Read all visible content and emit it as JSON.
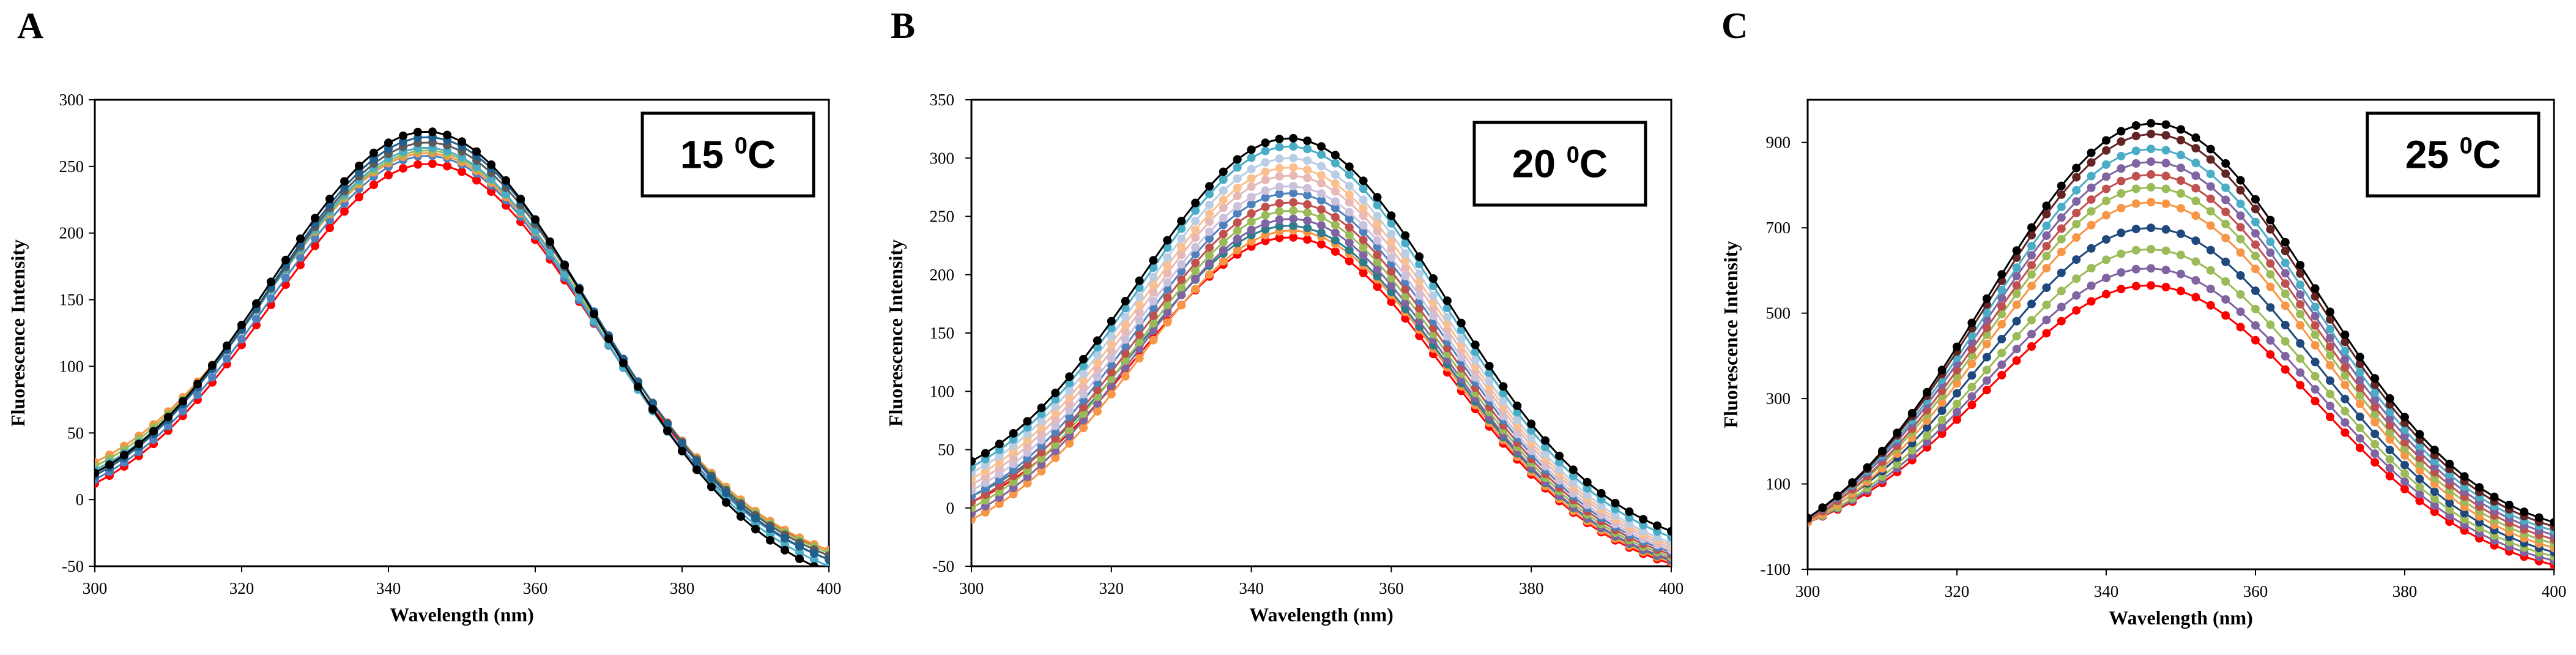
{
  "chart_data": [
    {
      "type": "line",
      "panel": "A",
      "annotation": {
        "temp": "15",
        "sup": "0",
        "unit": "C"
      },
      "xlabel": "Wavelength (nm)",
      "ylabel": "Fluorescence Intensity",
      "xlim": [
        300,
        400
      ],
      "ylim": [
        -50,
        300
      ],
      "xticks": [
        300,
        320,
        340,
        360,
        380,
        400
      ],
      "yticks": [
        -50,
        0,
        50,
        100,
        150,
        200,
        250,
        300
      ],
      "peak_x": 346,
      "series_params": [
        {
          "name": "s1",
          "color": "#000000",
          "peak": 276,
          "start": 20,
          "end": -55
        },
        {
          "name": "s2",
          "color": "#1f5f8b",
          "peak": 272,
          "start": 18,
          "end": -45
        },
        {
          "name": "s3",
          "color": "#5a5a5a",
          "peak": 268,
          "start": 20,
          "end": -42
        },
        {
          "name": "s4",
          "color": "#4bacc6",
          "peak": 264,
          "start": 22,
          "end": -50
        },
        {
          "name": "s5",
          "color": "#9bbb59",
          "peak": 262,
          "start": 25,
          "end": -40
        },
        {
          "name": "s6",
          "color": "#f79646",
          "peak": 260,
          "start": 28,
          "end": -38
        },
        {
          "name": "s7",
          "color": "#4f81bd",
          "peak": 258,
          "start": 15,
          "end": -45
        },
        {
          "name": "s8",
          "color": "#ff0000",
          "peak": 252,
          "start": 12,
          "end": -38
        }
      ]
    },
    {
      "type": "line",
      "panel": "B",
      "annotation": {
        "temp": "20",
        "sup": "0",
        "unit": "C"
      },
      "xlabel": "Wavelength (nm)",
      "ylabel": "Fluorescence Intensity",
      "xlim": [
        300,
        400
      ],
      "ylim": [
        -50,
        350
      ],
      "xticks": [
        300,
        320,
        340,
        360,
        380,
        400
      ],
      "yticks": [
        -50,
        0,
        50,
        100,
        150,
        200,
        250,
        300,
        350
      ],
      "peak_x": 346,
      "series_params": [
        {
          "name": "s1",
          "color": "#000000",
          "peak": 317,
          "start": 40,
          "end": -20
        },
        {
          "name": "s2",
          "color": "#4bacc6",
          "peak": 310,
          "start": 35,
          "end": -25
        },
        {
          "name": "s3",
          "color": "#b9cde5",
          "peak": 300,
          "start": 30,
          "end": -30
        },
        {
          "name": "s4",
          "color": "#fac090",
          "peak": 292,
          "start": 25,
          "end": -32
        },
        {
          "name": "s5",
          "color": "#e6b9b8",
          "peak": 285,
          "start": 20,
          "end": -34
        },
        {
          "name": "s6",
          "color": "#ccc1da",
          "peak": 276,
          "start": 15,
          "end": -36
        },
        {
          "name": "s7",
          "color": "#4f81bd",
          "peak": 270,
          "start": 10,
          "end": -38
        },
        {
          "name": "s8",
          "color": "#c0504d",
          "peak": 262,
          "start": 5,
          "end": -40
        },
        {
          "name": "s9",
          "color": "#9bbb59",
          "peak": 255,
          "start": 0,
          "end": -42
        },
        {
          "name": "s10",
          "color": "#8064a2",
          "peak": 248,
          "start": -5,
          "end": -44
        },
        {
          "name": "s11",
          "color": "#2c7c8c",
          "peak": 242,
          "start": 10,
          "end": -45
        },
        {
          "name": "s12",
          "color": "#f79646",
          "peak": 238,
          "start": -10,
          "end": -46
        },
        {
          "name": "s13",
          "color": "#ff0000",
          "peak": 232,
          "start": 5,
          "end": -48
        }
      ]
    },
    {
      "type": "line",
      "panel": "C",
      "annotation": {
        "temp": "25",
        "sup": "0",
        "unit": "C"
      },
      "xlabel": "Wavelength (nm)",
      "ylabel": "Fluorescence Intensity",
      "xlim": [
        300,
        400
      ],
      "ylim": [
        -100,
        1000
      ],
      "xticks": [
        300,
        320,
        340,
        360,
        380,
        400
      ],
      "yticks": [
        -100,
        100,
        300,
        500,
        700,
        900
      ],
      "peak_x": 346,
      "series_params": [
        {
          "name": "s1",
          "color": "#000000",
          "peak": 945,
          "start": 20,
          "end": 10
        },
        {
          "name": "s2",
          "color": "#632523",
          "peak": 920,
          "start": 20,
          "end": 0
        },
        {
          "name": "s3",
          "color": "#4bacc6",
          "peak": 885,
          "start": 20,
          "end": -10
        },
        {
          "name": "s4",
          "color": "#8064a2",
          "peak": 855,
          "start": 20,
          "end": -20
        },
        {
          "name": "s5",
          "color": "#c0504d",
          "peak": 825,
          "start": 15,
          "end": -30
        },
        {
          "name": "s6",
          "color": "#9bbb59",
          "peak": 795,
          "start": 15,
          "end": -40
        },
        {
          "name": "s7",
          "color": "#f79646",
          "peak": 760,
          "start": 10,
          "end": -50
        },
        {
          "name": "s8",
          "color": "#1f497d",
          "peak": 700,
          "start": 15,
          "end": -60
        },
        {
          "name": "s9",
          "color": "#9bbb59",
          "peak": 650,
          "start": 10,
          "end": -70
        },
        {
          "name": "s10",
          "color": "#8064a2",
          "peak": 605,
          "start": 10,
          "end": -80
        },
        {
          "name": "s11",
          "color": "#ff0000",
          "peak": 565,
          "start": 10,
          "end": -90
        }
      ]
    }
  ]
}
